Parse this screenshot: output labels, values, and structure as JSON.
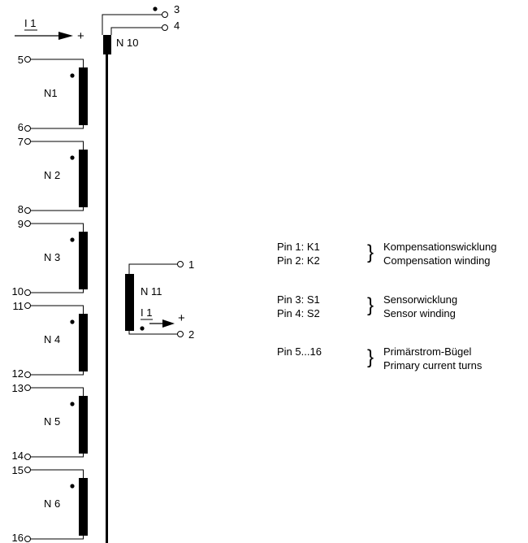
{
  "primary_current": {
    "label": "I 1",
    "polarity": "+"
  },
  "sensor_winding": {
    "name": "N 10",
    "pins": [
      "3",
      "4"
    ]
  },
  "compensation_winding": {
    "name": "N 11",
    "pins": [
      "1",
      "2"
    ],
    "current_label": "I 1",
    "polarity": "+"
  },
  "primary_turns": [
    {
      "name": "N1",
      "pin_start": "5",
      "pin_end": "6"
    },
    {
      "name": "N 2",
      "pin_start": "7",
      "pin_end": "8"
    },
    {
      "name": "N 3",
      "pin_start": "9",
      "pin_end": "10"
    },
    {
      "name": "N 4",
      "pin_start": "11",
      "pin_end": "12"
    },
    {
      "name": "N 5",
      "pin_start": "13",
      "pin_end": "14"
    },
    {
      "name": "N 6",
      "pin_start": "15",
      "pin_end": "16"
    }
  ],
  "legend": [
    {
      "pins": [
        "Pin 1:  K1",
        "Pin 2:  K2"
      ],
      "brace": "}",
      "desc_de": "Kompensationswicklung",
      "desc_en": "Compensation winding"
    },
    {
      "pins": [
        "Pin 3:  S1",
        "Pin 4:  S2"
      ],
      "brace": "}",
      "desc_de": "Sensorwicklung",
      "desc_en": "Sensor winding"
    },
    {
      "pins": [
        "Pin 5...16"
      ],
      "brace": "}",
      "desc_de": "Primärstrom-Bügel",
      "desc_en": "Primary current turns"
    }
  ],
  "colors": {
    "ink": "#000000",
    "background": "#ffffff"
  }
}
